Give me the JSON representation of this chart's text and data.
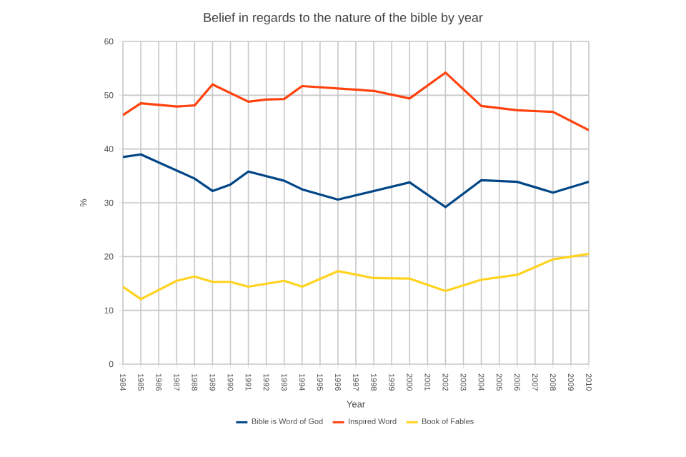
{
  "chart_data": {
    "type": "line",
    "title": "Belief in regards to the nature of the bible by year",
    "xlabel": "Year",
    "ylabel": "%",
    "xlim": [
      1984,
      2010
    ],
    "xticks": [
      1984,
      1985,
      1986,
      1987,
      1988,
      1989,
      1990,
      1991,
      1992,
      1993,
      1994,
      1995,
      1996,
      1997,
      1998,
      1999,
      2000,
      2001,
      2002,
      2003,
      2004,
      2005,
      2006,
      2007,
      2008,
      2009,
      2010
    ],
    "ylim": [
      0,
      60
    ],
    "yticks": [
      0,
      10,
      20,
      30,
      40,
      50,
      60
    ],
    "grid": true,
    "legend": "bottom",
    "marker": "none",
    "line_style": "solid",
    "series": [
      {
        "name": "Bible is Word of God",
        "color": "#004586",
        "x": [
          1984,
          1985,
          1988,
          1989,
          1990,
          1991,
          1993,
          1994,
          1996,
          2000,
          2002,
          2004,
          2006,
          2008,
          2010
        ],
        "values": [
          38.5,
          39.0,
          34.5,
          32.2,
          33.4,
          35.8,
          34.1,
          32.5,
          30.6,
          33.8,
          29.2,
          34.2,
          33.9,
          31.9,
          33.9
        ]
      },
      {
        "name": "Inspired Word",
        "color": "#ff420e",
        "x": [
          1984,
          1985,
          1986,
          1987,
          1988,
          1989,
          1991,
          1992,
          1993,
          1994,
          1998,
          2000,
          2002,
          2004,
          2006,
          2008,
          2010
        ],
        "values": [
          46.3,
          48.5,
          48.2,
          47.9,
          48.1,
          52.0,
          48.8,
          49.2,
          49.3,
          51.7,
          50.8,
          49.4,
          54.2,
          48.0,
          47.2,
          46.9,
          43.5
        ]
      },
      {
        "name": "Book of Fables",
        "color": "#ffd320",
        "x": [
          1984,
          1985,
          1987,
          1988,
          1989,
          1990,
          1991,
          1993,
          1994,
          1996,
          1998,
          2000,
          2002,
          2004,
          2006,
          2008,
          2010
        ],
        "values": [
          14.4,
          12.1,
          15.5,
          16.3,
          15.3,
          15.3,
          14.4,
          15.5,
          14.4,
          17.3,
          16.0,
          15.9,
          13.6,
          15.7,
          16.6,
          19.5,
          20.5
        ]
      }
    ]
  }
}
